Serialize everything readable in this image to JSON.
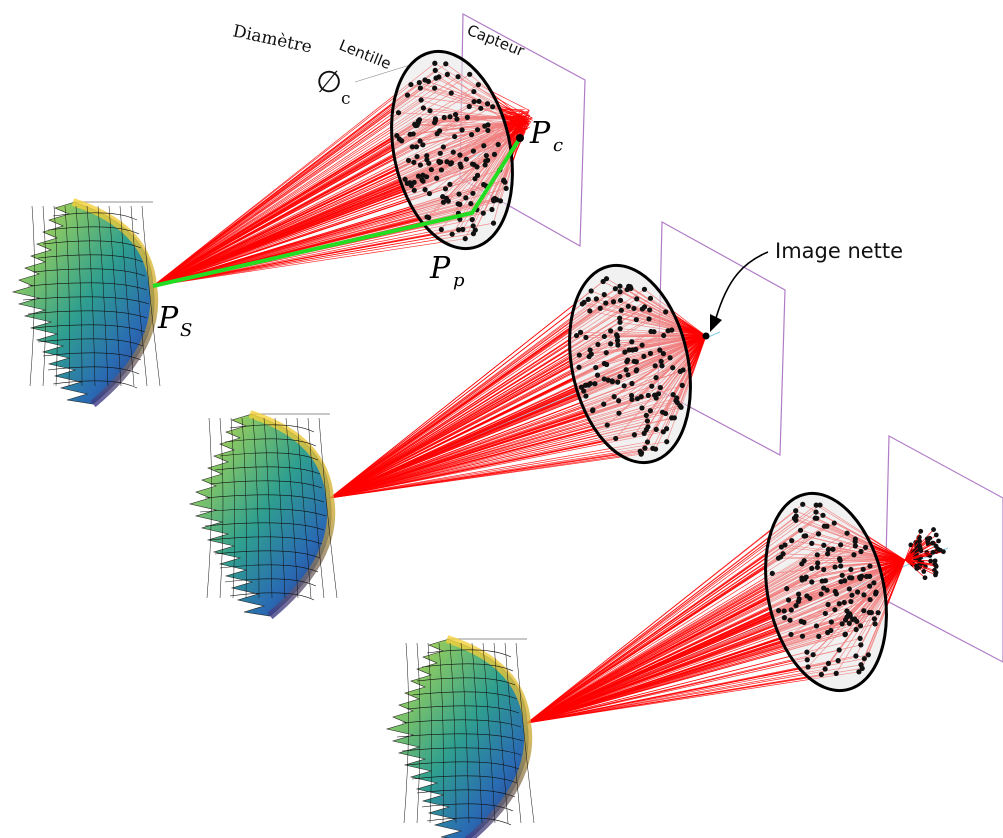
{
  "labels": {
    "diameter_word": "Diamètre",
    "diameter_symbol": "∅",
    "diameter_sub": "c",
    "lens": "Lentille",
    "sensor": "Capteur",
    "sharp_image": "Image nette",
    "point_source_main": "P",
    "point_source_sub": "S",
    "point_pupil_main": "P",
    "point_pupil_sub": "p",
    "point_sensor_main": "P",
    "point_sensor_sub": "c"
  },
  "colors": {
    "ray": "#ff0000",
    "ray_highlight": "#22dd22",
    "sensor_plane": "#b07cc6",
    "lens_fill": "#e6e6e6",
    "lens_edge": "#000000",
    "optical_axis": "#87ceeb"
  },
  "panels": [
    {
      "id": "top",
      "focus": "behind"
    },
    {
      "id": "middle",
      "focus": "on-sensor"
    },
    {
      "id": "bottom",
      "focus": "in-front"
    }
  ]
}
